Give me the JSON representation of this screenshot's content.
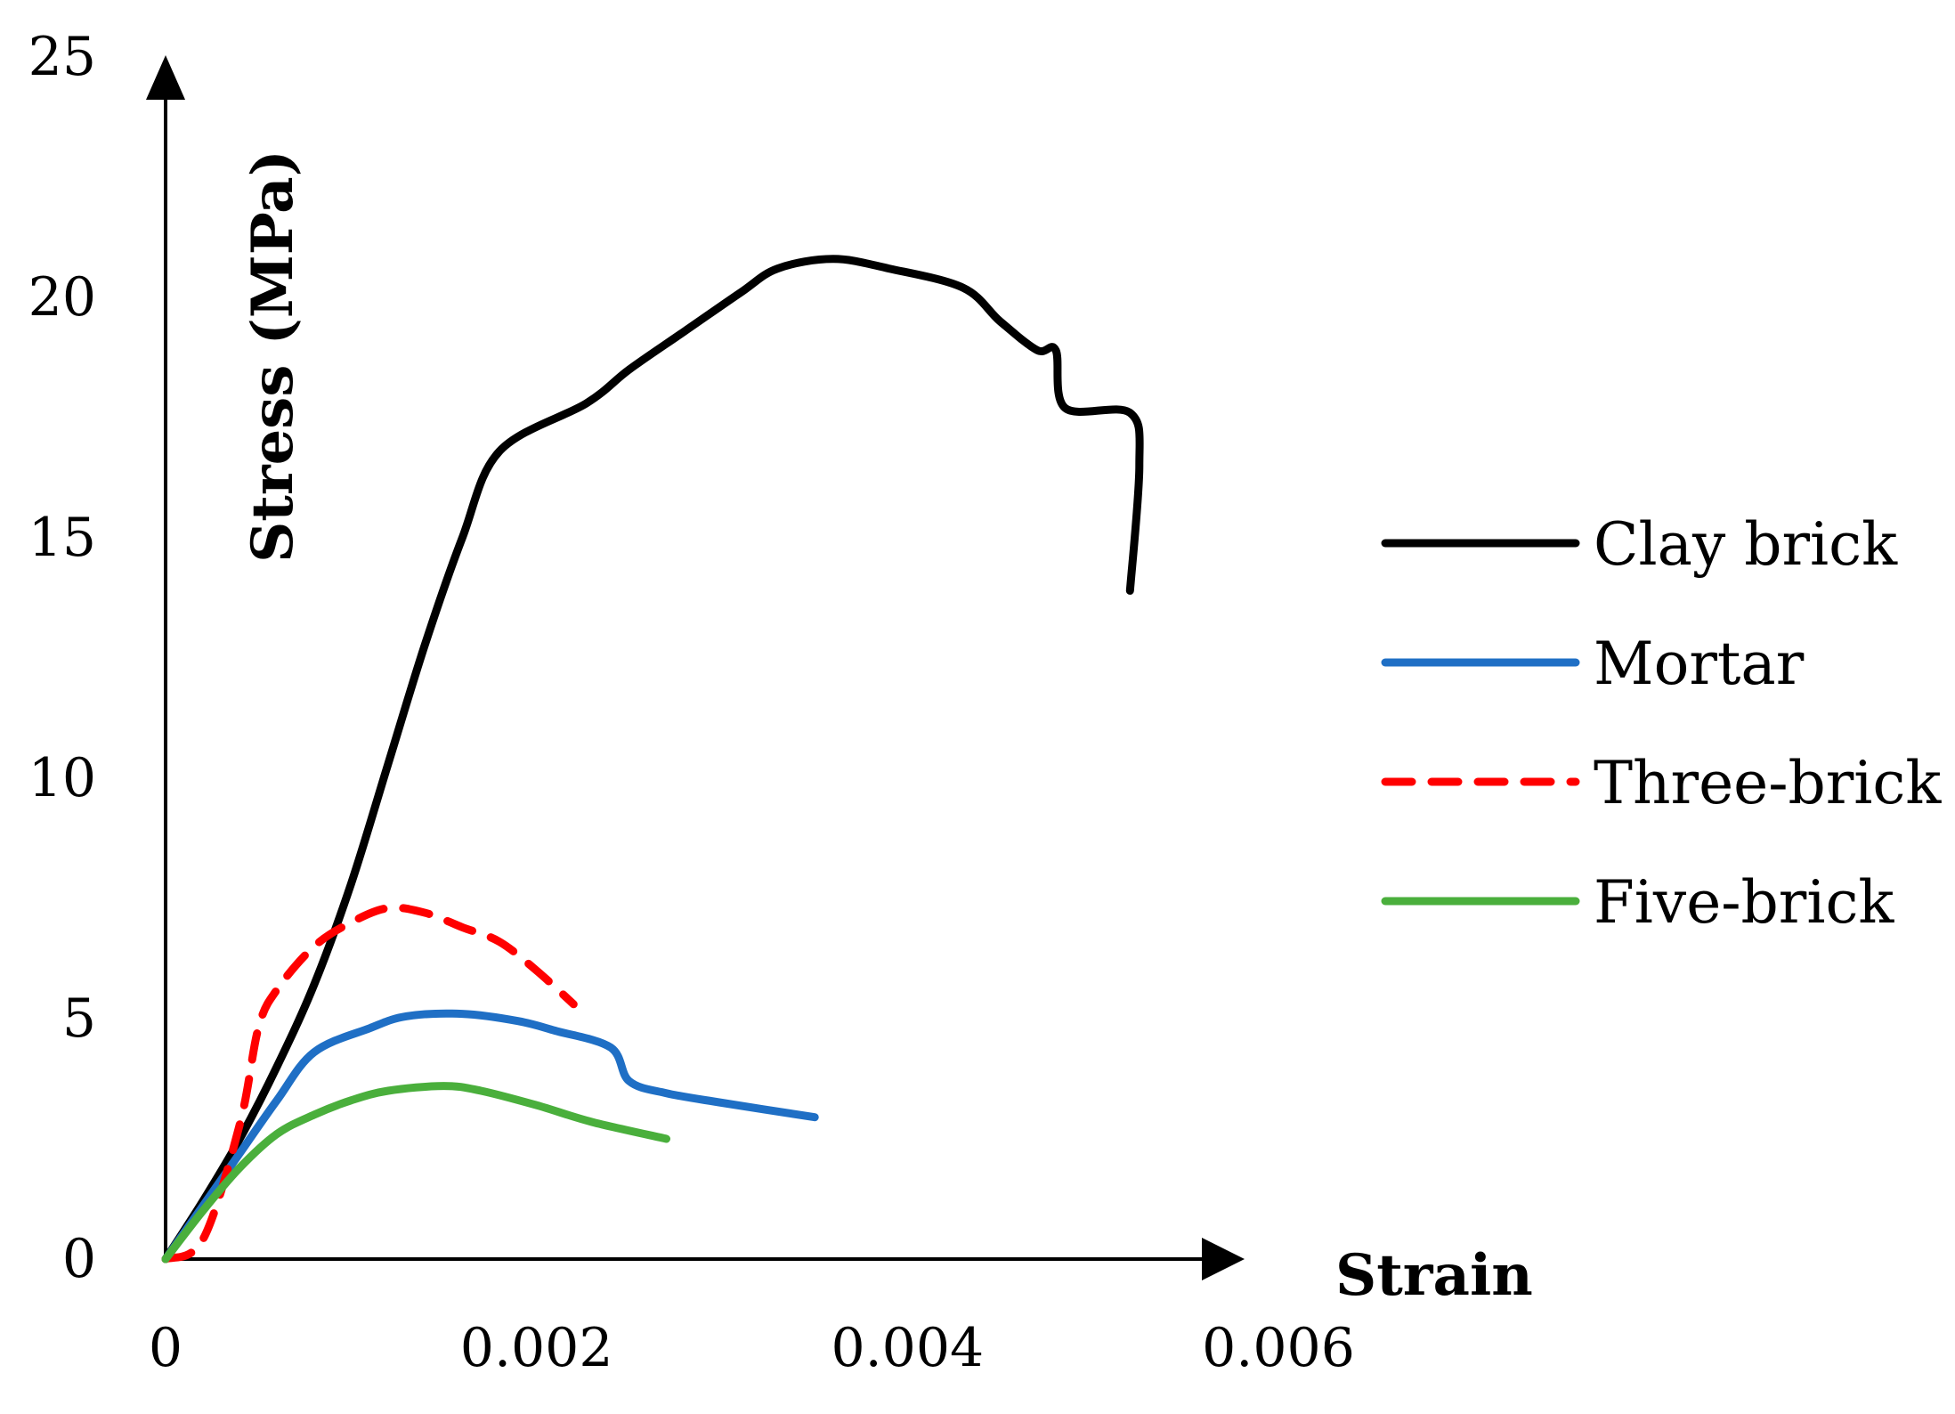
{
  "chart_data": {
    "type": "line",
    "title": "",
    "xlabel": "Strain",
    "ylabel": "Stress (MPa)",
    "xlim": [
      0,
      0.006
    ],
    "ylim": [
      0,
      25
    ],
    "x_ticks": [
      0,
      0.002,
      0.004,
      0.006
    ],
    "x_tick_labels": [
      "0",
      "0.002",
      "0.004",
      "0.006"
    ],
    "y_ticks": [
      0,
      5,
      10,
      15,
      20,
      25
    ],
    "y_tick_labels": [
      "0",
      "5",
      "10",
      "15",
      "20",
      "25"
    ],
    "grid": false,
    "legend_position": "right",
    "series": [
      {
        "name": "Clay brick",
        "color": "#000000",
        "dash": "solid",
        "points": [
          [
            0,
            0
          ],
          [
            0.0002,
            1.2
          ],
          [
            0.0004,
            2.5
          ],
          [
            0.0006,
            4.0
          ],
          [
            0.0008,
            5.7
          ],
          [
            0.001,
            7.8
          ],
          [
            0.0012,
            10.3
          ],
          [
            0.0014,
            12.8
          ],
          [
            0.0016,
            15.0
          ],
          [
            0.0018,
            16.8
          ],
          [
            0.00227,
            17.8
          ],
          [
            0.0025,
            18.5
          ],
          [
            0.0028,
            19.3
          ],
          [
            0.0031,
            20.1
          ],
          [
            0.0033,
            20.6
          ],
          [
            0.0036,
            20.8
          ],
          [
            0.0039,
            20.6
          ],
          [
            0.0043,
            20.2
          ],
          [
            0.0045,
            19.5
          ],
          [
            0.0047,
            18.9
          ],
          [
            0.0048,
            18.9
          ],
          [
            0.00485,
            17.7
          ],
          [
            0.0052,
            17.6
          ],
          [
            0.00525,
            16.5
          ],
          [
            0.0052,
            13.9
          ]
        ]
      },
      {
        "name": "Mortar",
        "color": "#1f6fc5",
        "dash": "solid",
        "points": [
          [
            0,
            0
          ],
          [
            0.0002,
            1.1
          ],
          [
            0.0004,
            2.2
          ],
          [
            0.0006,
            3.3
          ],
          [
            0.0008,
            4.3
          ],
          [
            0.0011,
            4.8
          ],
          [
            0.0013,
            5.05
          ],
          [
            0.0016,
            5.1
          ],
          [
            0.0019,
            4.95
          ],
          [
            0.0021,
            4.75
          ],
          [
            0.0024,
            4.4
          ],
          [
            0.0025,
            3.7
          ],
          [
            0.0027,
            3.45
          ],
          [
            0.003,
            3.25
          ],
          [
            0.0035,
            2.95
          ]
        ]
      },
      {
        "name": "Three-brick",
        "color": "#ff0000",
        "dash": "dashed",
        "points": [
          [
            0,
            0
          ],
          [
            0.0002,
            0.4
          ],
          [
            0.0004,
            2.8
          ],
          [
            0.0005,
            4.8
          ],
          [
            0.0006,
            5.6
          ],
          [
            0.0008,
            6.5
          ],
          [
            0.001,
            7.0
          ],
          [
            0.0012,
            7.3
          ],
          [
            0.0014,
            7.2
          ],
          [
            0.0016,
            6.9
          ],
          [
            0.0018,
            6.6
          ],
          [
            0.002,
            6.0
          ],
          [
            0.0022,
            5.3
          ]
        ]
      },
      {
        "name": "Five-brick",
        "color": "#4aaf3c",
        "dash": "solid",
        "points": [
          [
            0,
            0
          ],
          [
            0.0002,
            1.0
          ],
          [
            0.0004,
            1.9
          ],
          [
            0.0006,
            2.6
          ],
          [
            0.0008,
            3.0
          ],
          [
            0.001,
            3.3
          ],
          [
            0.0012,
            3.5
          ],
          [
            0.0015,
            3.6
          ],
          [
            0.0017,
            3.5
          ],
          [
            0.002,
            3.2
          ],
          [
            0.0023,
            2.85
          ],
          [
            0.0027,
            2.5
          ]
        ]
      }
    ]
  }
}
